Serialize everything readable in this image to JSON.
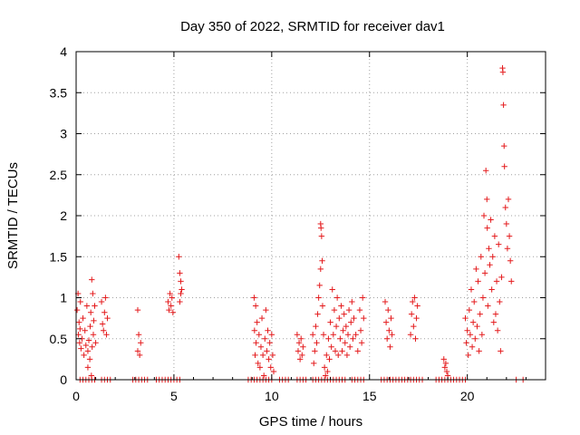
{
  "chart_data": {
    "type": "scatter",
    "title": "Day 350 of 2022, SRMTID for receiver dav1",
    "xlabel": "GPS time / hours",
    "ylabel": "SRMTID / TECUs",
    "xlim": [
      0,
      24
    ],
    "ylim": [
      0,
      4
    ],
    "xticks": [
      0,
      5,
      10,
      15,
      20
    ],
    "xtick_labels": [
      "0",
      "5",
      "10",
      "15",
      "20"
    ],
    "yticks": [
      0,
      0.5,
      1,
      1.5,
      2,
      2.5,
      3,
      3.5,
      4
    ],
    "ytick_labels": [
      "0",
      "0.5",
      "1",
      "1.5",
      "2",
      "2.5",
      "3",
      "3.5",
      "4"
    ],
    "grid": true,
    "marker": "+",
    "series": [
      {
        "name": "dav1",
        "color": "#e41a1c",
        "points": [
          [
            0.05,
            0.85
          ],
          [
            0.1,
            1.05
          ],
          [
            0.12,
            0.55
          ],
          [
            0.15,
            0.7
          ],
          [
            0.18,
            0.45
          ],
          [
            0.2,
            0.62
          ],
          [
            0.22,
            0.95
          ],
          [
            0.25,
            0.38
          ],
          [
            0.3,
            0.5
          ],
          [
            0.35,
            0.75
          ],
          [
            0.4,
            0.3
          ],
          [
            0.45,
            0.6
          ],
          [
            0.5,
            0.42
          ],
          [
            0.55,
            0.9
          ],
          [
            0.6,
            0.35
          ],
          [
            0.6,
            0.15
          ],
          [
            0.65,
            0.48
          ],
          [
            0.7,
            0.25
          ],
          [
            0.72,
            0.65
          ],
          [
            0.75,
            0.82
          ],
          [
            0.78,
            0.05
          ],
          [
            0.8,
            1.22
          ],
          [
            0.82,
            0.4
          ],
          [
            0.85,
            1.05
          ],
          [
            0.88,
            0.55
          ],
          [
            0.9,
            0.72
          ],
          [
            0.95,
            0.9
          ],
          [
            1.0,
            0.45
          ],
          [
            1.3,
            0.95
          ],
          [
            1.35,
            0.68
          ],
          [
            1.4,
            0.6
          ],
          [
            1.45,
            0.82
          ],
          [
            1.5,
            1.0
          ],
          [
            1.55,
            0.55
          ],
          [
            1.6,
            0.75
          ],
          [
            3.15,
            0.85
          ],
          [
            3.15,
            0.35
          ],
          [
            3.2,
            0.55
          ],
          [
            3.25,
            0.3
          ],
          [
            3.3,
            0.45
          ],
          [
            4.7,
            0.95
          ],
          [
            4.75,
            0.85
          ],
          [
            4.8,
            1.05
          ],
          [
            4.85,
            0.9
          ],
          [
            4.9,
            1.0
          ],
          [
            4.95,
            0.82
          ],
          [
            5.25,
            1.5
          ],
          [
            5.3,
            1.3
          ],
          [
            5.35,
            1.2
          ],
          [
            5.4,
            1.1
          ],
          [
            5.35,
            1.05
          ],
          [
            5.3,
            0.95
          ],
          [
            9.1,
            1.0
          ],
          [
            9.12,
            0.6
          ],
          [
            9.15,
            0.3
          ],
          [
            9.18,
            0.9
          ],
          [
            9.2,
            0.45
          ],
          [
            9.25,
            0.7
          ],
          [
            9.3,
            0.2
          ],
          [
            9.35,
            0.55
          ],
          [
            9.4,
            0.15
          ],
          [
            9.45,
            0.4
          ],
          [
            9.5,
            0.75
          ],
          [
            9.55,
            0.3
          ],
          [
            9.6,
            0.05
          ],
          [
            9.65,
            0.5
          ],
          [
            9.7,
            0.85
          ],
          [
            9.75,
            0.35
          ],
          [
            9.8,
            0.6
          ],
          [
            9.85,
            0.25
          ],
          [
            9.9,
            0.45
          ],
          [
            9.95,
            0.15
          ],
          [
            10.0,
            0.55
          ],
          [
            10.05,
            0.3
          ],
          [
            10.1,
            0.1
          ],
          [
            11.3,
            0.55
          ],
          [
            11.35,
            0.35
          ],
          [
            11.4,
            0.45
          ],
          [
            11.45,
            0.25
          ],
          [
            11.5,
            0.5
          ],
          [
            11.55,
            0.3
          ],
          [
            11.6,
            0.4
          ],
          [
            12.1,
            0.55
          ],
          [
            12.15,
            0.2
          ],
          [
            12.2,
            0.35
          ],
          [
            12.25,
            0.65
          ],
          [
            12.3,
            0.45
          ],
          [
            12.35,
            0.8
          ],
          [
            12.4,
            1.0
          ],
          [
            12.45,
            1.15
          ],
          [
            12.5,
            1.35
          ],
          [
            12.5,
            1.9
          ],
          [
            12.52,
            1.85
          ],
          [
            12.55,
            1.75
          ],
          [
            12.58,
            1.45
          ],
          [
            12.6,
            0.9
          ],
          [
            12.65,
            0.55
          ],
          [
            12.7,
            0.15
          ],
          [
            12.75,
            0.05
          ],
          [
            12.8,
            0.3
          ],
          [
            12.85,
            0.1
          ],
          [
            12.9,
            0.5
          ],
          [
            12.95,
            0.25
          ],
          [
            13.0,
            0.7
          ],
          [
            13.05,
            0.4
          ],
          [
            13.1,
            1.1
          ],
          [
            13.15,
            0.55
          ],
          [
            13.2,
            0.85
          ],
          [
            13.25,
            0.35
          ],
          [
            13.3,
            0.65
          ],
          [
            13.35,
            1.0
          ],
          [
            13.4,
            0.3
          ],
          [
            13.45,
            0.75
          ],
          [
            13.5,
            0.5
          ],
          [
            13.55,
            0.9
          ],
          [
            13.6,
            0.35
          ],
          [
            13.65,
            0.6
          ],
          [
            13.7,
            0.8
          ],
          [
            13.75,
            0.45
          ],
          [
            13.8,
            0.65
          ],
          [
            13.85,
            0.3
          ],
          [
            13.9,
            0.55
          ],
          [
            13.95,
            0.85
          ],
          [
            14.0,
            0.4
          ],
          [
            14.05,
            0.7
          ],
          [
            14.1,
            0.95
          ],
          [
            14.15,
            0.5
          ],
          [
            14.2,
            0.75
          ],
          [
            14.3,
            0.55
          ],
          [
            14.4,
            0.35
          ],
          [
            14.5,
            0.85
          ],
          [
            14.55,
            0.6
          ],
          [
            14.6,
            0.45
          ],
          [
            14.65,
            1.0
          ],
          [
            14.7,
            0.75
          ],
          [
            15.8,
            0.95
          ],
          [
            15.85,
            0.7
          ],
          [
            15.9,
            0.5
          ],
          [
            15.95,
            0.85
          ],
          [
            16.0,
            0.6
          ],
          [
            16.05,
            0.4
          ],
          [
            16.1,
            0.75
          ],
          [
            16.15,
            0.55
          ],
          [
            17.1,
            0.55
          ],
          [
            17.15,
            0.8
          ],
          [
            17.2,
            0.95
          ],
          [
            17.25,
            0.65
          ],
          [
            17.3,
            1.0
          ],
          [
            17.35,
            0.5
          ],
          [
            17.4,
            0.75
          ],
          [
            17.45,
            0.9
          ],
          [
            18.8,
            0.25
          ],
          [
            18.85,
            0.15
          ],
          [
            18.9,
            0.2
          ],
          [
            18.95,
            0.1
          ],
          [
            19.0,
            0.05
          ],
          [
            19.9,
            0.75
          ],
          [
            19.95,
            0.45
          ],
          [
            20.0,
            0.6
          ],
          [
            20.05,
            0.3
          ],
          [
            20.1,
            0.85
          ],
          [
            20.15,
            0.55
          ],
          [
            20.2,
            1.1
          ],
          [
            20.25,
            0.4
          ],
          [
            20.3,
            0.7
          ],
          [
            20.35,
            0.95
          ],
          [
            20.4,
            0.5
          ],
          [
            20.45,
            1.35
          ],
          [
            20.5,
            0.65
          ],
          [
            20.55,
            1.2
          ],
          [
            20.6,
            0.35
          ],
          [
            20.65,
            0.8
          ],
          [
            20.7,
            1.5
          ],
          [
            20.75,
            0.55
          ],
          [
            20.8,
            1.0
          ],
          [
            20.85,
            2.0
          ],
          [
            20.9,
            1.3
          ],
          [
            20.95,
            2.55
          ],
          [
            21.0,
            2.2
          ],
          [
            21.02,
            1.85
          ],
          [
            21.05,
            0.9
          ],
          [
            21.1,
            1.6
          ],
          [
            21.15,
            1.4
          ],
          [
            21.2,
            1.95
          ],
          [
            21.25,
            1.1
          ],
          [
            21.3,
            1.5
          ],
          [
            21.35,
            0.7
          ],
          [
            21.4,
            1.75
          ],
          [
            21.45,
            0.8
          ],
          [
            21.5,
            1.2
          ],
          [
            21.55,
            0.6
          ],
          [
            21.6,
            1.65
          ],
          [
            21.65,
            0.95
          ],
          [
            21.7,
            0.35
          ],
          [
            21.75,
            1.25
          ],
          [
            21.8,
            3.8
          ],
          [
            21.82,
            3.75
          ],
          [
            21.85,
            3.35
          ],
          [
            21.88,
            2.85
          ],
          [
            21.9,
            2.6
          ],
          [
            21.95,
            2.1
          ],
          [
            22.0,
            1.9
          ],
          [
            22.05,
            1.6
          ],
          [
            22.1,
            2.2
          ],
          [
            22.15,
            1.75
          ],
          [
            22.2,
            1.45
          ],
          [
            22.25,
            1.2
          ]
        ]
      }
    ],
    "zero_points_x": [
      0.2,
      0.35,
      0.5,
      0.65,
      0.8,
      0.95,
      1.3,
      1.45,
      1.6,
      1.75,
      2.9,
      3.05,
      3.2,
      3.35,
      3.5,
      3.65,
      4.1,
      4.25,
      4.4,
      4.55,
      4.7,
      4.85,
      5.0,
      5.15,
      5.3,
      8.8,
      8.95,
      9.1,
      9.25,
      9.4,
      9.55,
      9.7,
      9.85,
      10.0,
      10.4,
      10.55,
      10.7,
      10.85,
      11.3,
      11.45,
      11.6,
      11.75,
      12.1,
      12.25,
      12.4,
      12.55,
      12.7,
      12.85,
      13.0,
      13.15,
      13.3,
      13.45,
      13.6,
      13.75,
      14.1,
      14.25,
      14.4,
      14.55,
      14.7,
      15.6,
      15.75,
      15.9,
      16.05,
      16.2,
      16.35,
      16.5,
      16.65,
      16.8,
      16.95,
      17.1,
      17.25,
      17.4,
      17.55,
      17.7,
      18.4,
      18.55,
      18.7,
      18.85,
      19.0,
      19.15,
      19.3,
      19.45,
      19.6,
      19.75,
      19.9,
      22.5,
      22.85
    ]
  }
}
